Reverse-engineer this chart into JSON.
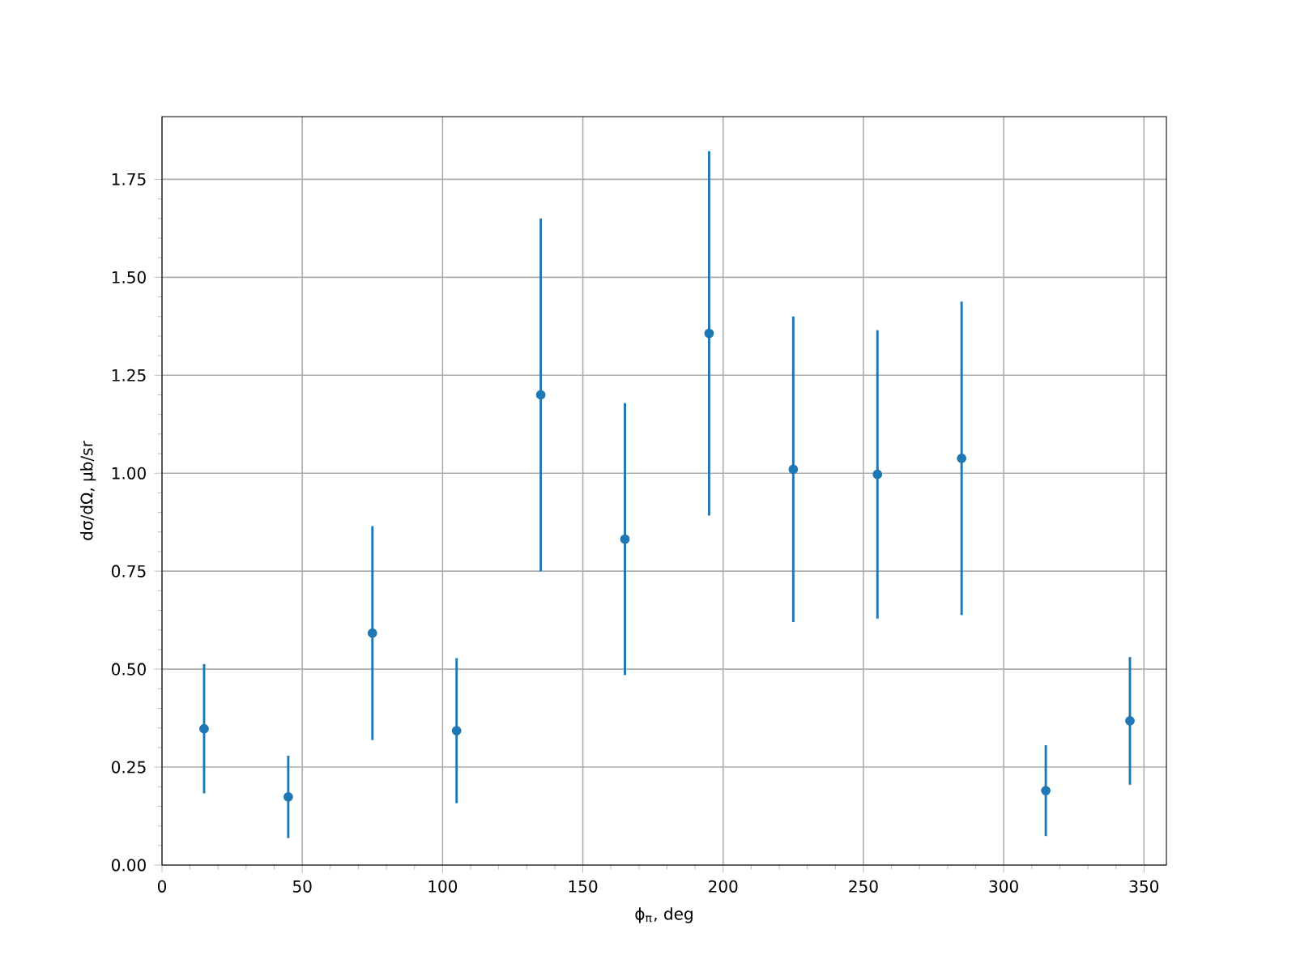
{
  "chart_data": {
    "type": "scatter",
    "xlabel": "ϕ$_{π}$, deg",
    "ylabel": "dσ/dΩ, μb/sr",
    "x": [
      15,
      45,
      75,
      105,
      135,
      165,
      195,
      225,
      255,
      285,
      315,
      345
    ],
    "series": [
      {
        "color": "#1f77b4",
        "values": [
          0.348,
          0.174,
          0.592,
          0.343,
          1.2,
          0.832,
          1.357,
          1.01,
          0.997,
          1.038,
          0.19,
          0.368
        ],
        "errors": [
          0.165,
          0.105,
          0.273,
          0.185,
          0.45,
          0.347,
          0.465,
          0.39,
          0.368,
          0.4,
          0.116,
          0.163
        ]
      }
    ],
    "xlim": [
      0,
      358
    ],
    "ylim": [
      0,
      1.91
    ],
    "xticks": [
      0,
      50,
      100,
      150,
      200,
      250,
      300,
      350
    ],
    "yticks": [
      {
        "value": 0,
        "label": "0.00"
      },
      {
        "value": 0.25,
        "label": "0.25"
      },
      {
        "value": 0.5,
        "label": "0.50"
      },
      {
        "value": 0.75,
        "label": "0.75"
      },
      {
        "value": 1.0,
        "label": "1.00"
      },
      {
        "value": 1.25,
        "label": "1.25"
      },
      {
        "value": 1.5,
        "label": "1.50"
      },
      {
        "value": 1.75,
        "label": "1.75"
      }
    ],
    "grid": true
  }
}
